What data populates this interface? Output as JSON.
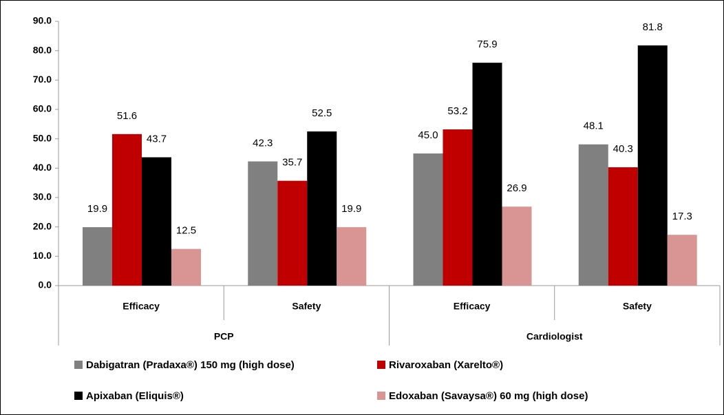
{
  "chart_data": {
    "type": "bar",
    "groups": [
      {
        "label": "PCP",
        "categories": [
          "Efficacy",
          "Safety"
        ]
      },
      {
        "label": "Cardiologist",
        "categories": [
          "Efficacy",
          "Safety"
        ]
      }
    ],
    "series": [
      {
        "name": "Dabigatran (Pradaxa®) 150 mg (high dose)",
        "color": "#808080",
        "values": [
          19.9,
          42.3,
          45,
          48.1
        ],
        "value_labels": [
          "19.9",
          "42.3",
          "45.0",
          "48.1"
        ]
      },
      {
        "name": "Rivaroxaban (Xarelto®)",
        "color": "#c00000",
        "values": [
          51.6,
          35.7,
          53.2,
          40.3
        ]
      },
      {
        "name": "Apixaban (Eliquis®)",
        "color": "#000000",
        "values": [
          43.7,
          52.5,
          75.9,
          81.8
        ]
      },
      {
        "name": "Edoxaban (Savaysa®) 60 mg (high dose)",
        "color": "#d99594",
        "values": [
          12.5,
          19.9,
          26.9,
          17.3
        ]
      }
    ],
    "ylim": [
      0,
      90
    ],
    "yticks": [
      {
        "value": 0,
        "label": "0.0"
      },
      {
        "value": 10,
        "label": "10.0"
      },
      {
        "value": 20,
        "label": "20.0"
      },
      {
        "value": 30,
        "label": "30.0"
      },
      {
        "value": 40,
        "label": "40.0"
      },
      {
        "value": 50,
        "label": "50.0"
      },
      {
        "value": 60,
        "label": "60.0"
      },
      {
        "value": 70,
        "label": "70.0"
      },
      {
        "value": 80,
        "label": "80.0"
      },
      {
        "value": 90,
        "label": "90.0"
      }
    ],
    "grid": false
  }
}
